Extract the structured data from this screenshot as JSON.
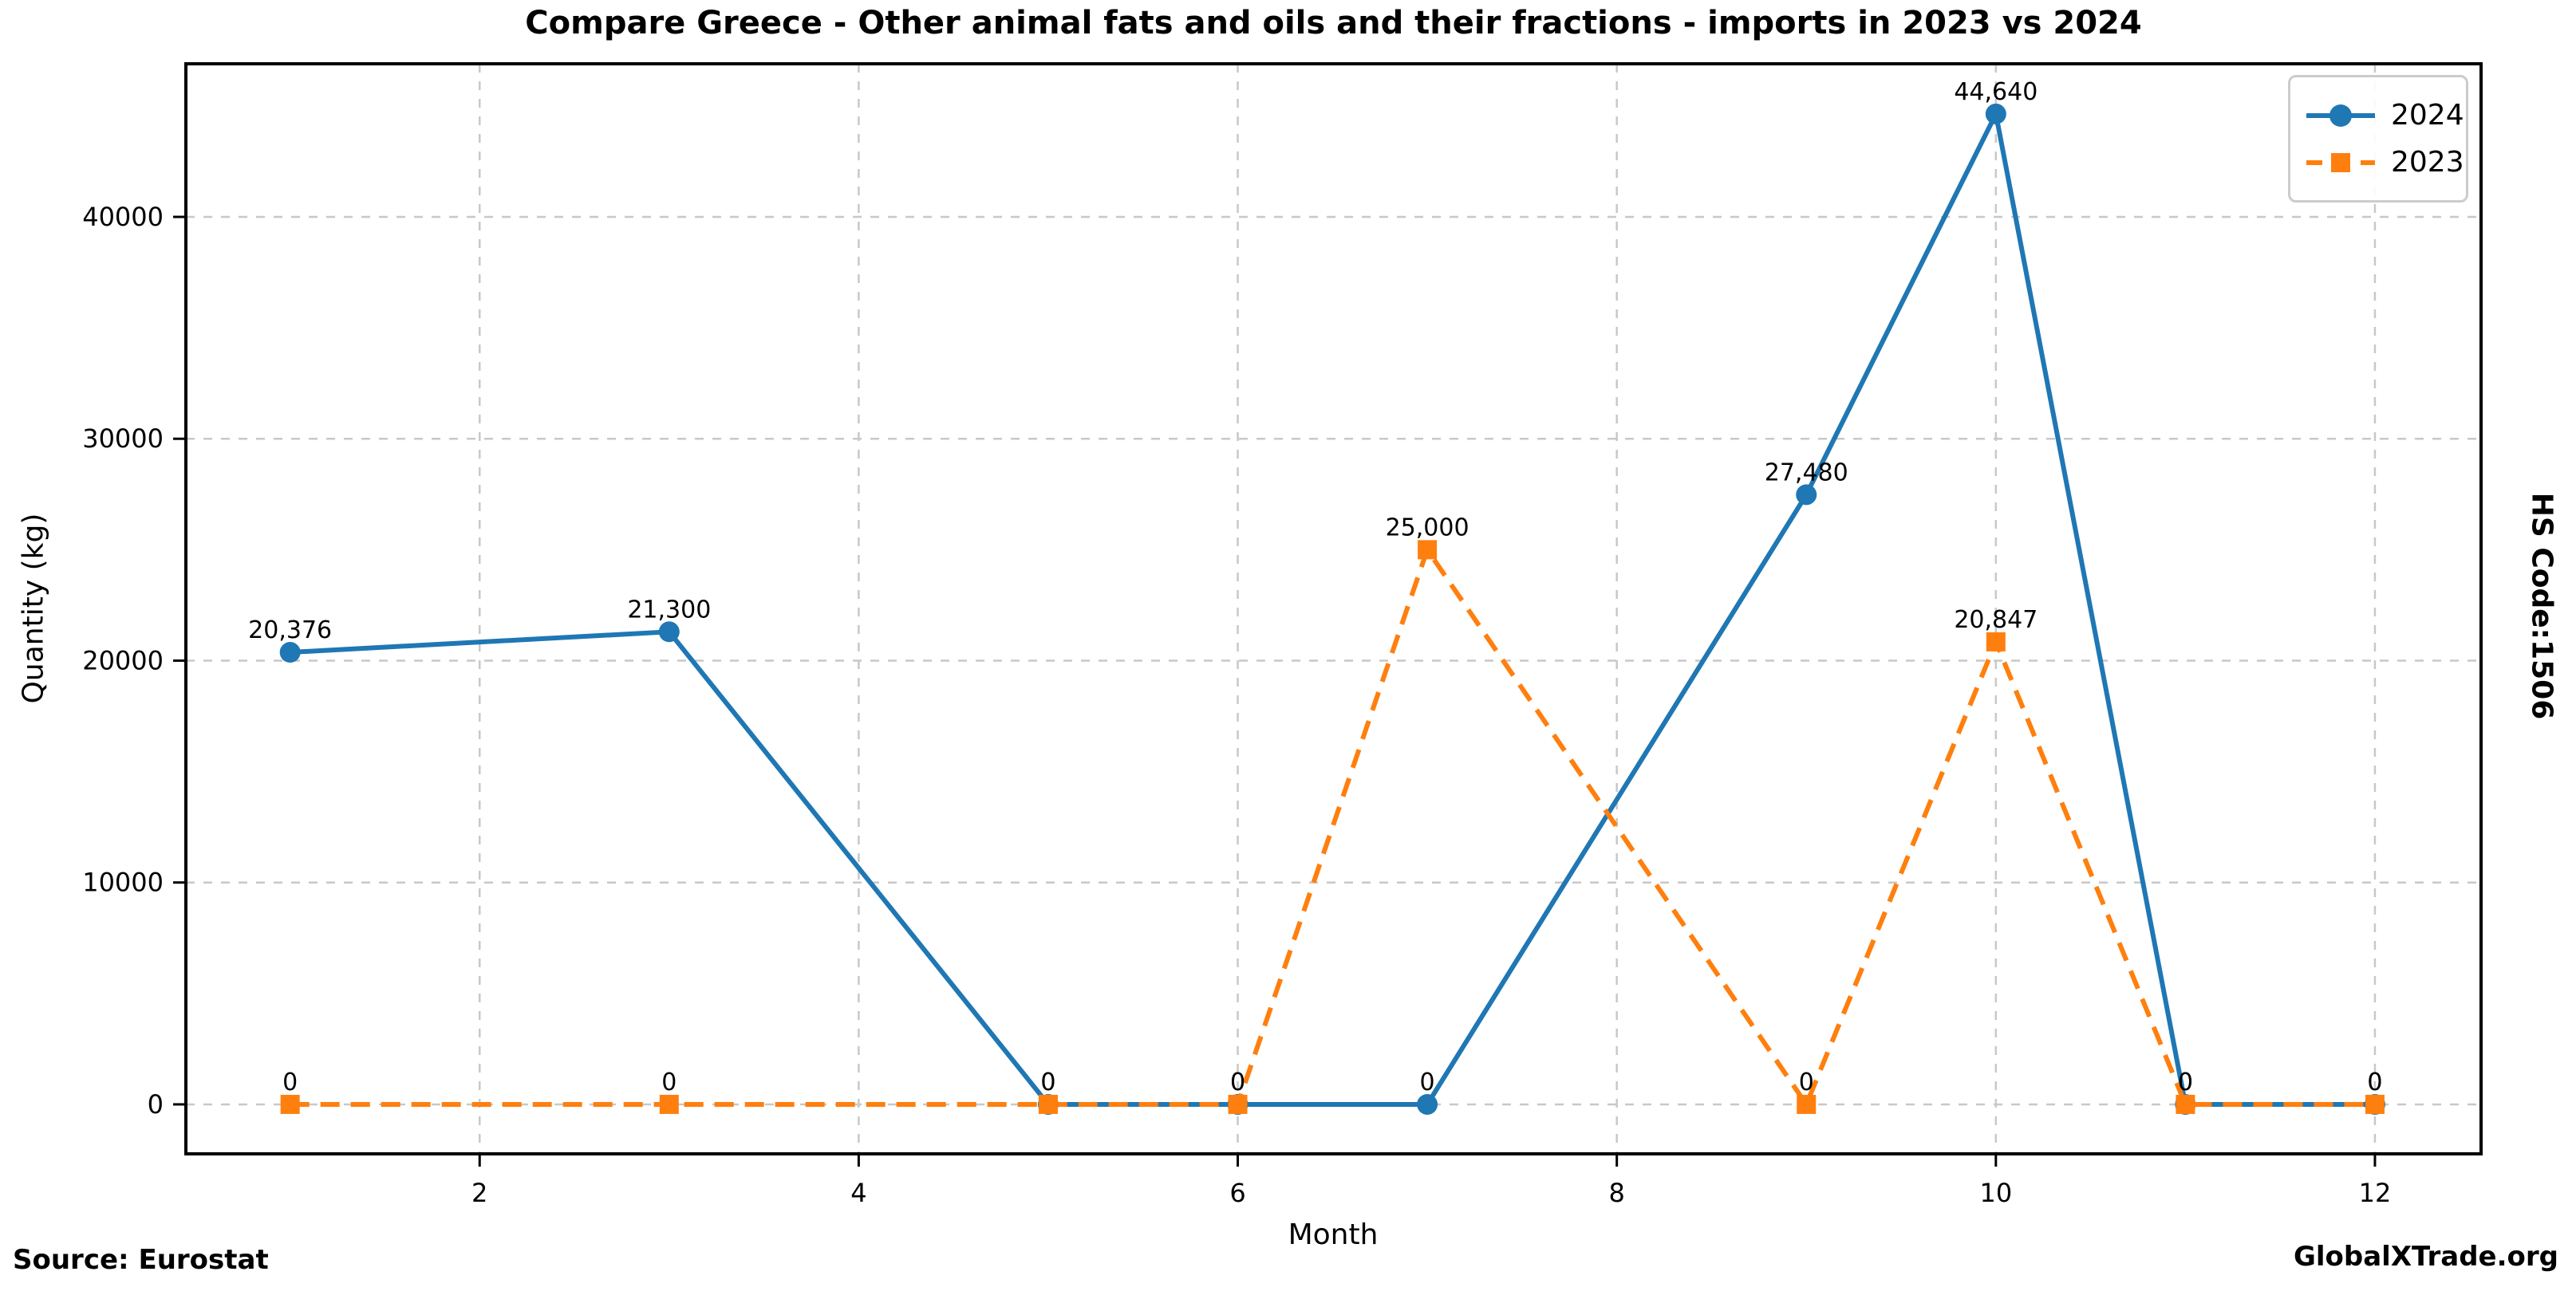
{
  "hs_code_label": "HS Code:1506",
  "footer": {
    "source": "Source: Eurostat",
    "brand": "GlobalXTrade.org"
  },
  "chart_data": {
    "type": "line",
    "title": "Compare Greece - Other animal fats and oils and their fractions - imports in 2023 vs 2024",
    "xlabel": "Month",
    "ylabel": "Quantity (kg)",
    "x": [
      1,
      3,
      5,
      6,
      7,
      9,
      10,
      11,
      12
    ],
    "series": [
      {
        "name": "2024",
        "color": "#1f77b4",
        "linestyle": "solid",
        "marker": "circle",
        "values": [
          20376,
          21300,
          0,
          0,
          0,
          27480,
          44640,
          0,
          0
        ],
        "labels": [
          "20,376",
          "21,300",
          "0",
          "0",
          "0",
          "27,480",
          "44,640",
          "0",
          "0"
        ]
      },
      {
        "name": "2023",
        "color": "#ff7f0e",
        "linestyle": "dashed",
        "marker": "square",
        "values": [
          0,
          0,
          0,
          0,
          25000,
          0,
          20847,
          0,
          0
        ],
        "labels": [
          "0",
          "0",
          "0",
          "0",
          "25,000",
          "0",
          "20,847",
          "0",
          "0"
        ]
      }
    ],
    "xticks": [
      2,
      4,
      6,
      8,
      10,
      12
    ],
    "yticks": [
      0,
      10000,
      20000,
      30000,
      40000
    ],
    "xlim": [
      0.45,
      12.56
    ],
    "ylim": [
      -2230,
      46900
    ],
    "grid": true,
    "legend_position": "upper right"
  }
}
